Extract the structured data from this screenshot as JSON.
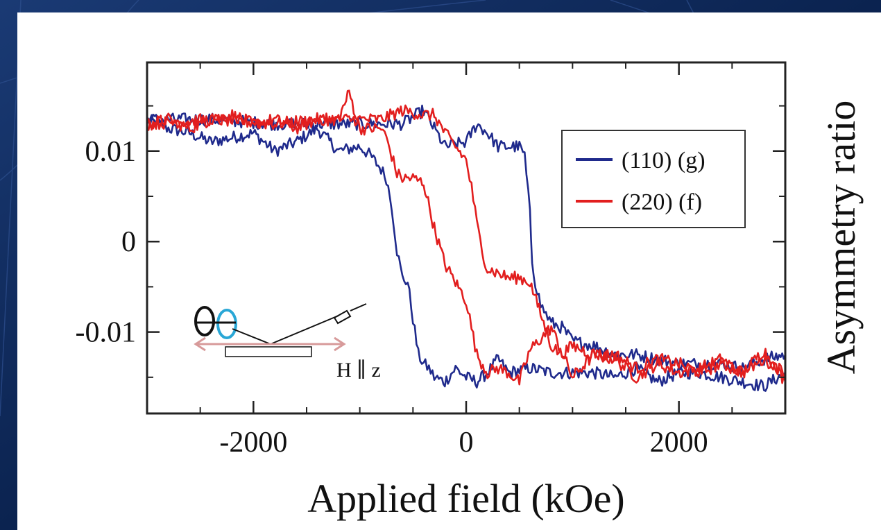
{
  "chart_data": {
    "type": "line",
    "title": "",
    "xlabel": "Applied field (kOe)",
    "ylabel": "Asymmetry ratio",
    "xlim": [
      -3000,
      3000
    ],
    "ylim": [
      -0.019,
      0.0198
    ],
    "x_ticks": [
      -2000,
      0,
      2000
    ],
    "x_tick_labels": [
      "-2000",
      "0",
      "2000"
    ],
    "y_ticks": [
      0.01,
      0,
      -0.01
    ],
    "y_tick_labels": [
      "0.01",
      "0",
      "-0.01"
    ],
    "grid": false,
    "legend_position": "top-right",
    "inset_label": "H ∥ z",
    "series": [
      {
        "name": "(110) (g)",
        "color": "#1f2a8c",
        "branches": [
          {
            "x": [
              -3000,
              -2800,
              -2600,
              -2400,
              -2200,
              -2000,
              -1800,
              -1600,
              -1400,
              -1200,
              -1000,
              -900,
              -800,
              -750,
              -700,
              -650,
              -600,
              -550,
              -500,
              -450,
              -400,
              -350,
              -300,
              -200,
              -100,
              0,
              100,
              200,
              300,
              400,
              600,
              800,
              1000,
              1200,
              1400,
              1600,
              1800,
              2000,
              2200,
              2400,
              2600,
              2800,
              3000
            ],
            "y": [
              0.0135,
              0.0125,
              0.012,
              0.011,
              0.0115,
              0.012,
              0.01,
              0.011,
              0.0125,
              0.01,
              0.0105,
              0.0095,
              0.008,
              0.007,
              0.004,
              -0.001,
              -0.004,
              -0.0045,
              -0.0085,
              -0.0125,
              -0.0135,
              -0.014,
              -0.015,
              -0.0155,
              -0.014,
              -0.015,
              -0.0155,
              -0.0145,
              -0.013,
              -0.0145,
              -0.014,
              -0.0145,
              -0.0145,
              -0.0145,
              -0.015,
              -0.014,
              -0.0155,
              -0.0145,
              -0.0145,
              -0.015,
              -0.0155,
              -0.016,
              -0.0145
            ]
          },
          {
            "x": [
              -3000,
              -2400,
              -1800,
              -1400,
              -1000,
              -800,
              -600,
              -400,
              -300,
              -200,
              0,
              100,
              200,
              300,
              400,
              500,
              550,
              600,
              620,
              650,
              700,
              750,
              800,
              900,
              1000,
              1200,
              1400,
              1600,
              1800,
              2000,
              2200,
              2400,
              2600,
              2800,
              3000
            ],
            "y": [
              0.0135,
              0.0135,
              0.013,
              0.013,
              0.013,
              0.013,
              0.013,
              0.0145,
              0.0125,
              0.0105,
              0.011,
              0.013,
              0.012,
              0.0105,
              0.0105,
              0.0105,
              0.0095,
              0.003,
              -0.002,
              -0.0045,
              -0.007,
              -0.008,
              -0.009,
              -0.0095,
              -0.011,
              -0.0115,
              -0.0125,
              -0.0125,
              -0.013,
              -0.0135,
              -0.0135,
              -0.0135,
              -0.014,
              -0.013,
              -0.0125
            ]
          }
        ]
      },
      {
        "name": "(220) (f)",
        "color": "#e21e1e",
        "branches": [
          {
            "x": [
              -3000,
              -2800,
              -2600,
              -2400,
              -2200,
              -2000,
              -1800,
              -1600,
              -1400,
              -1200,
              -1100,
              -1000,
              -900,
              -800,
              -750,
              -700,
              -650,
              -600,
              -500,
              -400,
              -300,
              -200,
              -100,
              0,
              50,
              100,
              200,
              300,
              400,
              500,
              600,
              800,
              1000,
              1200,
              1400,
              1600,
              1800,
              2000,
              2200,
              2400,
              2600,
              2800,
              3000
            ],
            "y": [
              0.013,
              0.0135,
              0.0125,
              0.0135,
              0.014,
              0.013,
              0.0135,
              0.0125,
              0.0135,
              0.0135,
              0.0165,
              0.0125,
              0.0125,
              0.0125,
              0.0115,
              0.0095,
              0.0075,
              0.007,
              0.007,
              0.0065,
              0.0015,
              -0.0025,
              -0.0045,
              -0.0065,
              -0.0095,
              -0.0125,
              -0.0145,
              -0.014,
              -0.0145,
              -0.0155,
              -0.012,
              -0.0095,
              -0.015,
              -0.0125,
              -0.013,
              -0.015,
              -0.0135,
              -0.0145,
              -0.014,
              -0.013,
              -0.0145,
              -0.012,
              -0.0155
            ]
          },
          {
            "x": [
              -3000,
              -2400,
              -1800,
              -1400,
              -1200,
              -1000,
              -800,
              -600,
              -400,
              -300,
              -200,
              -100,
              0,
              50,
              100,
              150,
              200,
              300,
              400,
              500,
              600,
              700,
              800,
              900,
              1000,
              1200,
              1400,
              1600,
              1800,
              2000,
              2200,
              2400,
              2600,
              2800,
              3000
            ],
            "y": [
              0.013,
              0.0135,
              0.013,
              0.0135,
              0.0135,
              0.0135,
              0.0135,
              0.0145,
              0.014,
              0.014,
              0.012,
              0.0105,
              0.009,
              0.006,
              0.002,
              -0.001,
              -0.003,
              -0.0035,
              -0.004,
              -0.004,
              -0.0045,
              -0.008,
              -0.0115,
              -0.0125,
              -0.0115,
              -0.0125,
              -0.0125,
              -0.014,
              -0.013,
              -0.0135,
              -0.0145,
              -0.0135,
              -0.0145,
              -0.013,
              -0.0145
            ]
          }
        ]
      }
    ]
  }
}
